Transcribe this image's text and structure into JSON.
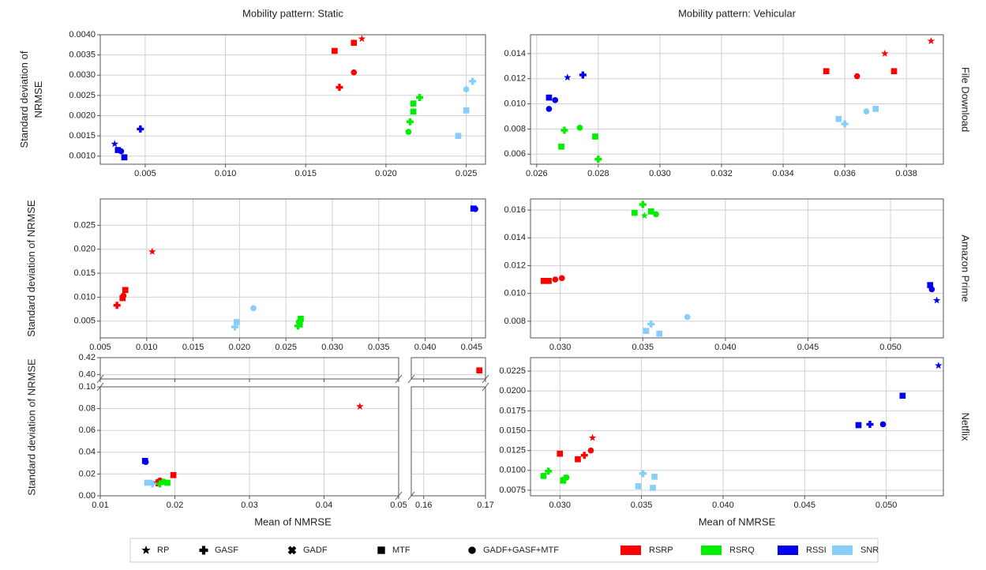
{
  "legend": {
    "markers": [
      {
        "label": "RP",
        "shape": "star"
      },
      {
        "label": "GASF",
        "shape": "plus"
      },
      {
        "label": "GADF",
        "shape": "x"
      },
      {
        "label": "MTF",
        "shape": "square"
      },
      {
        "label": "GADF+GASF+MTF",
        "shape": "circle"
      }
    ],
    "colors": [
      {
        "label": "RSRP",
        "color": "#ff0000"
      },
      {
        "label": "RSRQ",
        "color": "#00ee00"
      },
      {
        "label": "RSSI",
        "color": "#0000ee"
      },
      {
        "label": "SNR",
        "color": "#87cefa"
      }
    ]
  },
  "chart_data": [
    {
      "type": "scatter",
      "title": "Mobility pattern: Static",
      "y_label": "Standard deviation of NRMSE",
      "grid": true,
      "xlim": [
        0.0022,
        0.0262
      ],
      "xticks": [
        0.005,
        {
          "value": 0.01,
          "label": "0.010"
        },
        0.015,
        {
          "value": 0.02,
          "label": "0.020"
        },
        0.025
      ],
      "ylim": [
        0.0008,
        0.004
      ],
      "yticks": [
        {
          "value": 0.001,
          "label": "0.0010"
        },
        0.0015,
        {
          "value": 0.002,
          "label": "0.0020"
        },
        0.0025,
        {
          "value": 0.003,
          "label": "0.0030"
        },
        0.0035,
        {
          "value": 0.004,
          "label": "0.0040"
        }
      ],
      "series": [
        {
          "name": "RSRP",
          "color": "#ff0000",
          "x": [
            0.0185,
            0.0171,
            0.0168,
            0.018,
            0.018
          ],
          "values": [
            0.0039,
            0.0027,
            0.0036,
            0.0038,
            0.00307
          ],
          "markers": [
            "star",
            "plus",
            "square",
            "square",
            "circle"
          ]
        },
        {
          "name": "RSRQ",
          "color": "#00ee00",
          "x": [
            0.0221,
            0.0217,
            0.0217,
            0.0215,
            0.0214
          ],
          "values": [
            0.00245,
            0.0023,
            0.0021,
            0.00185,
            0.0016
          ],
          "markers": [
            "plus",
            "square",
            "square",
            "plus",
            "circle"
          ]
        },
        {
          "name": "RSSI",
          "color": "#0000ee",
          "x": [
            0.0031,
            0.0047,
            0.0033,
            0.0035,
            0.0037
          ],
          "values": [
            0.0013,
            0.00167,
            0.00115,
            0.00112,
            0.00097
          ],
          "markers": [
            "star",
            "plus",
            "square",
            "circle",
            "square"
          ]
        },
        {
          "name": "SNR",
          "color": "#87cefa",
          "x": [
            0.0254,
            0.025,
            0.025,
            0.0245
          ],
          "values": [
            0.00285,
            0.00265,
            0.00213,
            0.0015
          ],
          "markers": [
            "plus",
            "circle",
            "square",
            "square"
          ]
        }
      ]
    },
    {
      "type": "scatter",
      "title": "Mobility pattern: Vehicular",
      "row_label": "File Download",
      "grid": true,
      "xlim": [
        0.0258,
        0.0392
      ],
      "xticks": [
        0.026,
        0.028,
        {
          "value": 0.03,
          "label": "0.030"
        },
        0.032,
        0.034,
        0.036,
        0.038
      ],
      "ylim": [
        0.0052,
        0.0155
      ],
      "yticks": [
        0.006,
        0.008,
        {
          "value": 0.01,
          "label": "0.010"
        },
        0.012,
        0.014
      ],
      "series": [
        {
          "name": "RSRP",
          "color": "#ff0000",
          "x": [
            0.0388,
            0.0373,
            0.0354,
            0.0364,
            0.0376
          ],
          "values": [
            0.015,
            0.014,
            0.0126,
            0.0122,
            0.0126
          ],
          "markers": [
            "star",
            "star",
            "square",
            "circle",
            "square"
          ]
        },
        {
          "name": "RSRQ",
          "color": "#00ee00",
          "x": [
            0.0269,
            0.0268,
            0.0274,
            0.0279,
            0.028
          ],
          "values": [
            0.0079,
            0.0066,
            0.0081,
            0.0074,
            0.0056
          ],
          "markers": [
            "plus",
            "square",
            "circle",
            "square",
            "plus"
          ]
        },
        {
          "name": "RSSI",
          "color": "#0000ee",
          "x": [
            0.027,
            0.0275,
            0.0264,
            0.0266,
            0.0264
          ],
          "values": [
            0.0121,
            0.0123,
            0.0105,
            0.0103,
            0.0096
          ],
          "markers": [
            "star",
            "plus",
            "square",
            "circle",
            "circle"
          ]
        },
        {
          "name": "SNR",
          "color": "#87cefa",
          "x": [
            0.0358,
            0.036,
            0.0367,
            0.037
          ],
          "values": [
            0.0088,
            0.0084,
            0.0094,
            0.0096
          ],
          "markers": [
            "square",
            "plus",
            "circle",
            "square"
          ]
        }
      ]
    },
    {
      "type": "scatter",
      "y_label": "Standard deviation of NRMSE",
      "grid": true,
      "xlim": [
        0.005,
        0.0465
      ],
      "xticks": [
        0.005,
        {
          "value": 0.01,
          "label": "0.010"
        },
        0.015,
        {
          "value": 0.02,
          "label": "0.020"
        },
        0.025,
        {
          "value": 0.03,
          "label": "0.030"
        },
        0.035,
        {
          "value": 0.04,
          "label": "0.040"
        },
        0.045
      ],
      "ylim": [
        0.0015,
        0.0305
      ],
      "yticks": [
        0.005,
        {
          "value": 0.01,
          "label": "0.010"
        },
        0.015,
        {
          "value": 0.02,
          "label": "0.020"
        },
        0.025
      ],
      "series": [
        {
          "name": "RSRP",
          "color": "#ff0000",
          "x": [
            0.0106,
            0.0077,
            0.0074,
            0.0068,
            0.0075
          ],
          "values": [
            0.0195,
            0.0115,
            0.0098,
            0.0083,
            0.0103
          ],
          "markers": [
            "star",
            "square",
            "square",
            "plus",
            "circle"
          ]
        },
        {
          "name": "RSRQ",
          "color": "#00ee00",
          "x": [
            0.0266,
            0.0264,
            0.0263,
            0.0265
          ],
          "values": [
            0.0055,
            0.0048,
            0.004,
            0.0043
          ],
          "markers": [
            "square",
            "circle",
            "plus",
            "square"
          ]
        },
        {
          "name": "RSSI",
          "color": "#0000ee",
          "x": [
            0.0452,
            0.0454
          ],
          "values": [
            0.0285,
            0.0284
          ],
          "markers": [
            "square",
            "circle"
          ]
        },
        {
          "name": "SNR",
          "color": "#87cefa",
          "x": [
            0.0215,
            0.0197,
            0.0195
          ],
          "values": [
            0.0077,
            0.0048,
            0.0038
          ],
          "markers": [
            "circle",
            "square",
            "plus"
          ]
        }
      ]
    },
    {
      "type": "scatter",
      "row_label": "Amazon Prime",
      "grid": true,
      "xlim": [
        0.0282,
        0.0532
      ],
      "xticks": [
        {
          "value": 0.03,
          "label": "0.030"
        },
        0.035,
        {
          "value": 0.04,
          "label": "0.040"
        },
        0.045,
        {
          "value": 0.05,
          "label": "0.050"
        }
      ],
      "ylim": [
        0.0068,
        0.0168
      ],
      "yticks": [
        0.008,
        {
          "value": 0.01,
          "label": "0.010"
        },
        0.012,
        0.014,
        0.016
      ],
      "series": [
        {
          "name": "RSRP",
          "color": "#ff0000",
          "x": [
            0.029,
            0.0293,
            0.0297,
            0.0301
          ],
          "values": [
            0.0109,
            0.0109,
            0.011,
            0.0111
          ],
          "markers": [
            "square",
            "square",
            "circle",
            "circle"
          ]
        },
        {
          "name": "RSRQ",
          "color": "#00ee00",
          "x": [
            0.0345,
            0.035,
            0.0351,
            0.0355,
            0.0358
          ],
          "values": [
            0.0158,
            0.0164,
            0.0156,
            0.0159,
            0.0157
          ],
          "markers": [
            "square",
            "plus",
            "star",
            "square",
            "circle"
          ]
        },
        {
          "name": "RSSI",
          "color": "#0000ee",
          "x": [
            0.0524,
            0.0525,
            0.0528
          ],
          "values": [
            0.0106,
            0.0103,
            0.0095
          ],
          "markers": [
            "square",
            "circle",
            "star"
          ]
        },
        {
          "name": "SNR",
          "color": "#87cefa",
          "x": [
            0.0352,
            0.0355,
            0.036,
            0.0377
          ],
          "values": [
            0.0073,
            0.0078,
            0.0071,
            0.0083
          ],
          "markers": [
            "square",
            "plus",
            "square",
            "circle"
          ]
        }
      ]
    },
    {
      "type": "broken-scatter",
      "y_label": "Standard deviation of NRMSE",
      "x_label": "Mean of NMRSE",
      "grid": true,
      "x_segments": [
        {
          "xlim": [
            0.01,
            0.05
          ],
          "xticks": [
            0.01,
            0.02,
            0.03,
            0.04,
            0.05
          ]
        },
        {
          "xlim": [
            0.158,
            0.17
          ],
          "xticks": [
            0.16,
            0.17
          ]
        }
      ],
      "y_segments": [
        {
          "ylim": [
            0,
            0.1
          ],
          "yticks": [
            {
              "value": 0,
              "label": "0.00"
            },
            0.02,
            0.04,
            0.06,
            0.08,
            {
              "value": 0.1,
              "label": "0.10"
            }
          ]
        },
        {
          "ylim": [
            0.395,
            0.42
          ],
          "yticks": [
            {
              "value": 0.4,
              "label": "0.40"
            },
            0.42
          ]
        }
      ],
      "series": [
        {
          "name": "RSRP",
          "color": "#ff0000",
          "x": [
            0.169,
            0.0448,
            0.0198,
            0.018,
            0.0176
          ],
          "values": [
            0.405,
            0.082,
            0.019,
            0.014,
            0.012
          ],
          "markers": [
            "square",
            "star",
            "square",
            "circle",
            "plus"
          ]
        },
        {
          "name": "RSRQ",
          "color": "#00ee00",
          "x": [
            0.019,
            0.0185,
            0.018
          ],
          "values": [
            0.012,
            0.013,
            0.011
          ],
          "markers": [
            "square",
            "circle",
            "plus"
          ]
        },
        {
          "name": "RSSI",
          "color": "#0000ee",
          "x": [
            0.016,
            0.0161
          ],
          "values": [
            0.032,
            0.031
          ],
          "markers": [
            "square",
            "circle"
          ]
        },
        {
          "name": "SNR",
          "color": "#87cefa",
          "x": [
            0.0163,
            0.0168,
            0.017
          ],
          "values": [
            0.012,
            0.012,
            0.011
          ],
          "markers": [
            "square",
            "circle",
            "plus"
          ]
        }
      ]
    },
    {
      "type": "scatter",
      "row_label": "Netflix",
      "x_label": "Mean of NMRSE",
      "grid": true,
      "xlim": [
        0.0282,
        0.0535
      ],
      "xticks": [
        {
          "value": 0.03,
          "label": "0.030"
        },
        0.035,
        {
          "value": 0.04,
          "label": "0.040"
        },
        0.045,
        {
          "value": 0.05,
          "label": "0.050"
        }
      ],
      "ylim": [
        0.0068,
        0.0242
      ],
      "yticks": [
        0.0075,
        {
          "value": 0.01,
          "label": "0.0100"
        },
        0.0125,
        {
          "value": 0.015,
          "label": "0.0150"
        },
        0.0175,
        {
          "value": 0.02,
          "label": "0.0200"
        },
        0.0225
      ],
      "series": [
        {
          "name": "RSRP",
          "color": "#ff0000",
          "x": [
            0.032,
            0.03,
            0.0319,
            0.0311,
            0.0315
          ],
          "values": [
            0.0141,
            0.0121,
            0.0125,
            0.0114,
            0.0119
          ],
          "markers": [
            "star",
            "square",
            "circle",
            "square",
            "plus"
          ]
        },
        {
          "name": "RSRQ",
          "color": "#00ee00",
          "x": [
            0.0293,
            0.029,
            0.0302,
            0.0304,
            0.0303
          ],
          "values": [
            0.0099,
            0.0093,
            0.0087,
            0.0091,
            0.009
          ],
          "markers": [
            "plus",
            "square",
            "square",
            "circle",
            "plus"
          ]
        },
        {
          "name": "RSSI",
          "color": "#0000ee",
          "x": [
            0.0532,
            0.051,
            0.0483,
            0.049,
            0.0498
          ],
          "values": [
            0.0232,
            0.0194,
            0.0157,
            0.0158,
            0.0158
          ],
          "markers": [
            "star",
            "square",
            "square",
            "plus",
            "circle"
          ]
        },
        {
          "name": "SNR",
          "color": "#87cefa",
          "x": [
            0.0351,
            0.0348,
            0.0357,
            0.0358
          ],
          "values": [
            0.0096,
            0.008,
            0.0078,
            0.0092
          ],
          "markers": [
            "plus",
            "square",
            "square",
            "square"
          ]
        }
      ]
    }
  ]
}
